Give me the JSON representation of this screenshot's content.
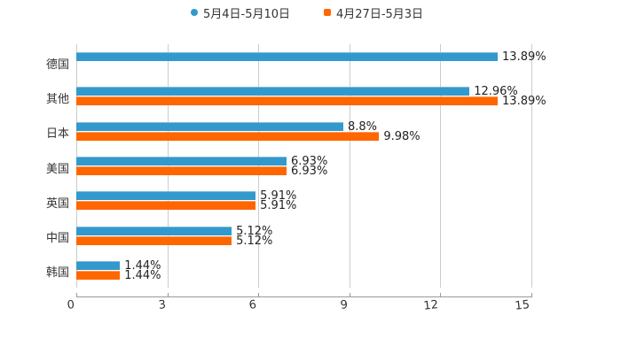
{
  "chart_data": {
    "type": "bar",
    "orientation": "horizontal",
    "title": "",
    "xlabel": "",
    "ylabel": "",
    "categories": [
      "德国",
      "其他",
      "日本",
      "美国",
      "英国",
      "中国",
      "韩国"
    ],
    "series": [
      {
        "name": "5月4日-5月10日",
        "color": "#3399CC",
        "marker": "circle",
        "values": [
          13.89,
          12.96,
          8.8,
          6.93,
          5.91,
          5.12,
          1.44
        ],
        "labels": [
          "13.89%",
          "12.96%",
          "8.8%",
          "6.93%",
          "5.91%",
          "5.12%",
          "1.44%"
        ]
      },
      {
        "name": "4月27日-5月3日",
        "color": "#FF6600",
        "marker": "square",
        "values": [
          null,
          13.89,
          9.98,
          6.93,
          5.91,
          5.12,
          1.44
        ],
        "labels": [
          "",
          "13.89%",
          "9.98%",
          "6.93%",
          "5.91%",
          "5.12%",
          "1.44%"
        ]
      }
    ],
    "xlim": [
      0,
      15
    ],
    "xticks": [
      0,
      3,
      6,
      9,
      12,
      15
    ],
    "xtick_labels": [
      "0",
      "3",
      "6",
      "9",
      "12",
      "15"
    ],
    "grid": true,
    "legend_position": "top"
  },
  "legend": {
    "items": [
      {
        "label": "5月4日-5月10日",
        "color": "#3399CC"
      },
      {
        "label": "4月27日-5月3日",
        "color": "#FF6600"
      }
    ]
  }
}
